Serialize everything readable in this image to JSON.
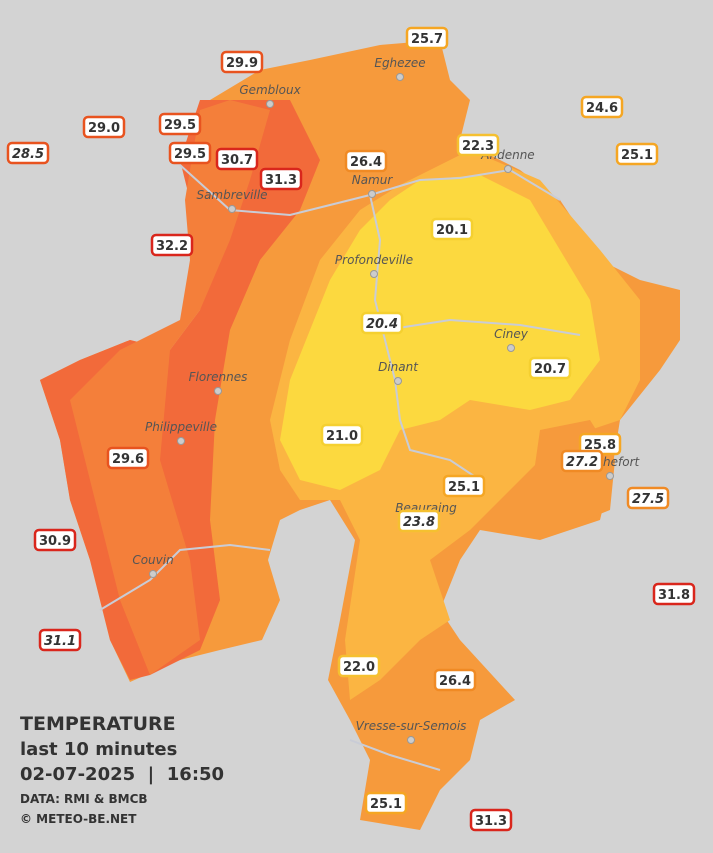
{
  "legend": {
    "title": "TEMPERATURE",
    "period": "last 10 minutes",
    "datetime": "02-07-2025  |  16:50",
    "source": "DATA: RMI & BMCB",
    "copyright": "© METEO-BE.NET"
  },
  "cities": [
    "Eghezee",
    "Gembloux",
    "Andenne",
    "Namur",
    "Sambreville",
    "Profondeville",
    "Ciney",
    "Dinant",
    "Florennes",
    "Philippeville",
    "Rochefort",
    "Beauraing",
    "Couvin",
    "Vresse-sur-Semois"
  ],
  "stations": [
    {
      "label": "25.7",
      "color": "#f5a623"
    },
    {
      "label": "29.9",
      "color": "#e8531f"
    },
    {
      "label": "29.0",
      "color": "#e8531f"
    },
    {
      "label": "29.5",
      "color": "#e8531f"
    },
    {
      "label": "28.5",
      "color": "#e8531f"
    },
    {
      "label": "29.5",
      "color": "#e8531f"
    },
    {
      "label": "30.7",
      "color": "#d9261c"
    },
    {
      "label": "31.3",
      "color": "#d9261c"
    },
    {
      "label": "26.4",
      "color": "#f08a24"
    },
    {
      "label": "22.3",
      "color": "#f5c030"
    },
    {
      "label": "24.6",
      "color": "#f5a623"
    },
    {
      "label": "25.1",
      "color": "#f5a623"
    },
    {
      "label": "32.2",
      "color": "#d9261c"
    },
    {
      "label": "20.1",
      "color": "#f5d030"
    },
    {
      "label": "20.4",
      "color": "#f5d030"
    },
    {
      "label": "20.7",
      "color": "#f5d030"
    },
    {
      "label": "21.0",
      "color": "#f5d030"
    },
    {
      "label": "25.8",
      "color": "#f5a623"
    },
    {
      "label": "27.2",
      "color": "#f08a24"
    },
    {
      "label": "27.5",
      "color": "#f08a24"
    },
    {
      "label": "25.1",
      "color": "#f5a623"
    },
    {
      "label": "23.8",
      "color": "#f5c030"
    },
    {
      "label": "29.6",
      "color": "#e8531f"
    },
    {
      "label": "30.9",
      "color": "#d9261c"
    },
    {
      "label": "31.8",
      "color": "#d9261c"
    },
    {
      "label": "31.1",
      "color": "#d9261c"
    },
    {
      "label": "22.0",
      "color": "#f5c030"
    },
    {
      "label": "26.4",
      "color": "#f08a24"
    },
    {
      "label": "25.1",
      "color": "#f5a623"
    },
    {
      "label": "31.3",
      "color": "#d9261c"
    }
  ]
}
